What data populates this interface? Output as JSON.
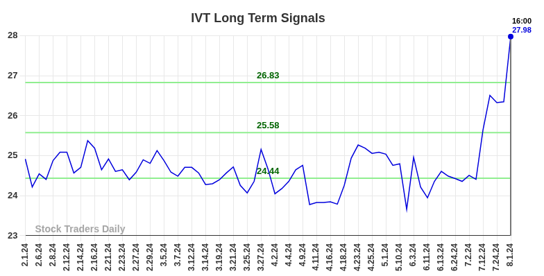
{
  "chart_data": {
    "type": "line",
    "title": "IVT Long Term Signals",
    "categories": [
      "2.1.24",
      null,
      "2.6.24",
      null,
      "2.8.24",
      null,
      "2.12.24",
      null,
      "2.14.24",
      null,
      "2.16.24",
      null,
      "2.21.24",
      null,
      "2.23.24",
      null,
      "2.27.24",
      null,
      "2.29.24",
      null,
      "3.5.24",
      null,
      "3.7.24",
      null,
      "3.12.24",
      null,
      "3.14.24",
      null,
      "3.19.24",
      null,
      "3.21.24",
      null,
      "3.25.24",
      null,
      "3.27.24",
      null,
      "4.2.24",
      null,
      "4.4.24",
      null,
      "4.9.24",
      null,
      "4.11.24",
      null,
      "4.16.24",
      null,
      "4.18.24",
      null,
      "4.23.24",
      null,
      "4.25.24",
      null,
      "5.1.24",
      null,
      "5.10.24",
      null,
      "6.3.24",
      null,
      "6.11.24",
      null,
      "6.13.24",
      null,
      "6.24.24",
      null,
      "7.2.24",
      null,
      "7.12.24",
      null,
      "7.24.24",
      null,
      "8.1.24"
    ],
    "values": [
      24.92,
      24.22,
      24.55,
      24.41,
      24.88,
      25.09,
      25.09,
      24.57,
      24.71,
      25.38,
      25.19,
      24.65,
      24.92,
      24.61,
      24.65,
      24.4,
      24.59,
      24.9,
      24.81,
      25.13,
      24.88,
      24.59,
      24.49,
      24.71,
      24.71,
      24.57,
      24.28,
      24.3,
      24.4,
      24.57,
      24.72,
      24.26,
      24.07,
      24.36,
      25.16,
      24.67,
      24.05,
      24.18,
      24.36,
      24.65,
      24.76,
      23.78,
      23.83,
      23.83,
      23.85,
      23.79,
      24.26,
      24.94,
      25.27,
      25.19,
      25.06,
      25.09,
      25.04,
      24.76,
      24.8,
      23.66,
      24.96,
      24.22,
      23.95,
      24.36,
      24.61,
      24.49,
      24.43,
      24.36,
      24.51,
      24.41,
      25.64,
      26.51,
      26.33,
      26.35,
      27.98
    ],
    "color": "#0000dd",
    "ylim": [
      23,
      28
    ],
    "yticks": [
      23,
      24,
      25,
      26,
      27,
      28
    ],
    "grid": true,
    "annotations": {
      "signal_lines": [
        24.44,
        25.58,
        26.83
      ],
      "last_point_time": "16:00",
      "watermark": "Stock Traders Daily"
    }
  }
}
